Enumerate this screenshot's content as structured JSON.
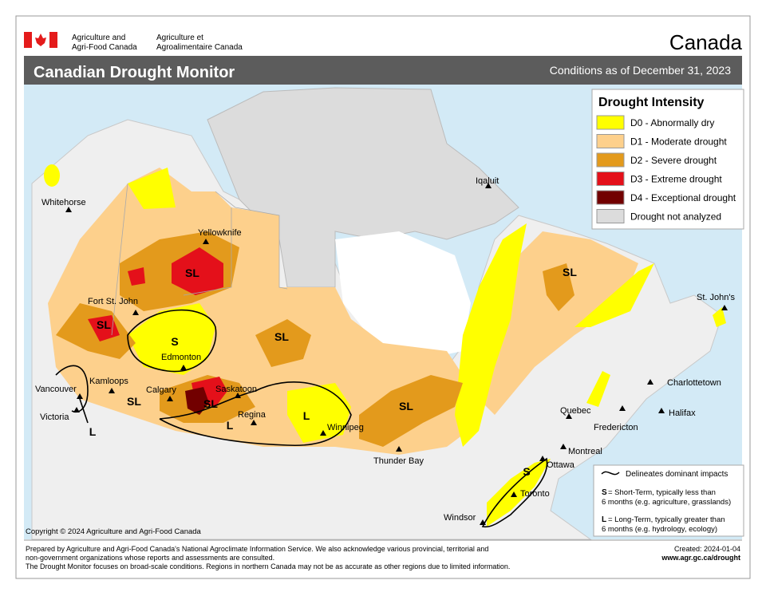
{
  "header": {
    "dept_en": [
      "Agriculture and",
      "Agri-Food Canada"
    ],
    "dept_fr": [
      "Agriculture et",
      "Agroalimentaire Canada"
    ],
    "wordmark": "Canada"
  },
  "title_bar": {
    "title": "Canadian Drought Monitor",
    "conditions": "Conditions as of December 31, 2023"
  },
  "legend": {
    "title": "Drought Intensity",
    "items": [
      {
        "label": "D0 - Abnormally dry",
        "color": "#ffff00"
      },
      {
        "label": "D1 - Moderate drought",
        "color": "#fdd08c"
      },
      {
        "label": "D2 - Severe drought",
        "color": "#e39a1c"
      },
      {
        "label": "D3 - Extreme drought",
        "color": "#e4101a"
      },
      {
        "label": "D4 - Exceptional drought",
        "color": "#720000"
      },
      {
        "label": "Drought not analyzed",
        "color": "#dcdcdc"
      }
    ]
  },
  "cities": [
    "Whitehorse",
    "Yellowknife",
    "Iqaluit",
    "Fort St. John",
    "Edmonton",
    "Kamloops",
    "Vancouver",
    "Victoria",
    "Calgary",
    "Saskatoon",
    "Regina",
    "Winnipeg",
    "Thunder Bay",
    "St. John's",
    "Charlottetown",
    "Halifax",
    "Quebec",
    "Fredericton",
    "Montreal",
    "Ottawa",
    "Toronto",
    "Windsor"
  ],
  "impact_labels": [
    "SL",
    "SL",
    "S",
    "SL",
    "SL",
    "SL",
    "SL",
    "L",
    "L",
    "SL",
    "S",
    "L"
  ],
  "impact_legend": {
    "line": "Delineates dominant impacts",
    "short": {
      "code": "S",
      "text": [
        "= Short-Term, typically less than",
        "6 months (e.g. agriculture, grasslands)"
      ]
    },
    "long": {
      "code": "L",
      "text": [
        "= Long-Term, typically greater  than",
        "6 months (e.g. hydrology, ecology)"
      ]
    }
  },
  "copyright": "Copyright © 2024 Agriculture and Agri-Food Canada",
  "footer": {
    "notes": [
      "Prepared by Agriculture and Agri-Food Canada's National Agroclimate Information Service.  We also acknowledge various provincial, territorial and",
      "non-government organizations whose reports and assessments are consulted.",
      "The Drought Monitor focuses on broad-scale conditions.  Regions in northern Canada may not be as accurate as other regions due to limited information."
    ],
    "created": "Created: 2024-01-04",
    "url": "www.agr.gc.ca/drought"
  }
}
